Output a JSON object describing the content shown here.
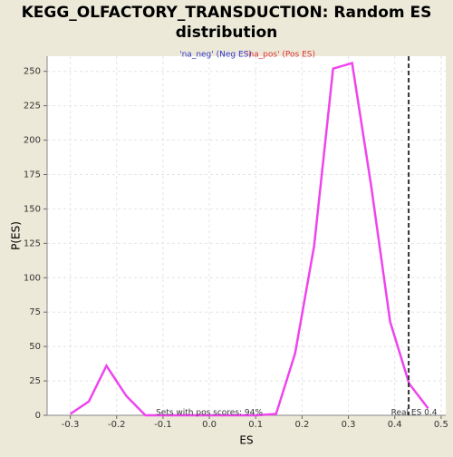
{
  "chart_data": {
    "type": "line",
    "title": [
      "KEGG_OLFACTORY_TRANSDUCTION: Random ES",
      "distribution"
    ],
    "xlabel": "ES",
    "ylabel": "P(ES)",
    "legend_entries": [
      {
        "name": "'na_neg' (Neg ES)",
        "color": "#3333cc"
      },
      {
        "name": "'na_pos' (Pos ES)",
        "color": "#dd3333"
      }
    ],
    "x": [
      -0.3,
      -0.26,
      -0.222,
      -0.179,
      -0.138,
      -0.097,
      -0.056,
      -0.015,
      0.026,
      0.067,
      0.103,
      0.144,
      0.185,
      0.226,
      0.267,
      0.308,
      0.349,
      0.39,
      0.431,
      0.472
    ],
    "series": [
      {
        "name": "'na_pos' (Pos ES)",
        "color": "#ee44ee",
        "values": [
          1,
          10,
          36,
          14,
          0,
          0,
          0,
          0,
          0,
          0,
          0,
          1,
          45,
          123,
          252,
          256,
          167,
          68,
          23,
          5
        ]
      }
    ],
    "xlim": [
      -0.35,
      0.51
    ],
    "ylim": [
      0,
      261
    ],
    "xticks": [
      -0.3,
      -0.2,
      -0.1,
      {
        "value": 0,
        "label": "0.0"
      },
      0.1,
      0.2,
      0.3,
      0.4,
      0.5
    ],
    "yticks": [
      0,
      25,
      50,
      75,
      100,
      125,
      150,
      175,
      200,
      225,
      250
    ],
    "grid": true,
    "real_es": 0.43,
    "real_es_label": "Real ES 0.4",
    "annotation": "Sets with pos scores: 94%"
  }
}
